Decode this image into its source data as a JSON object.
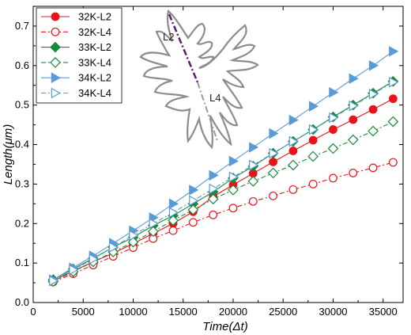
{
  "chart_data": {
    "type": "line",
    "xlabel": "Time(Δt)",
    "ylabel": "Length(μm)",
    "xlim": [
      0,
      37000
    ],
    "ylim": [
      0,
      0.75
    ],
    "x_ticks": [
      "0",
      "5000",
      "10000",
      "15000",
      "20000",
      "25000",
      "30000",
      "35000"
    ],
    "y_ticks": [
      "0.0",
      "0.1",
      "0.2",
      "0.3",
      "0.4",
      "0.5",
      "0.6",
      "0.7"
    ],
    "x": [
      2000,
      4000,
      6000,
      8000,
      10000,
      12000,
      14000,
      16000,
      18000,
      20000,
      22000,
      24000,
      26000,
      28000,
      30000,
      32000,
      34000,
      36000
    ],
    "legend_position": "top-left",
    "series": [
      {
        "name": "32K-L2",
        "color": "#e8141c",
        "marker": "circle",
        "filled": true,
        "dashed": false,
        "values": [
          0.055,
          0.08,
          0.103,
          0.125,
          0.149,
          0.175,
          0.2,
          0.23,
          0.268,
          0.298,
          0.327,
          0.356,
          0.384,
          0.411,
          0.438,
          0.463,
          0.489,
          0.516
        ]
      },
      {
        "name": "32K-L4",
        "color": "#e8141c",
        "marker": "circle",
        "filled": false,
        "dashed": true,
        "values": [
          0.052,
          0.073,
          0.095,
          0.117,
          0.139,
          0.162,
          0.182,
          0.203,
          0.222,
          0.239,
          0.256,
          0.27,
          0.286,
          0.3,
          0.315,
          0.328,
          0.341,
          0.355
        ]
      },
      {
        "name": "33K-L2",
        "color": "#1a8a3a",
        "marker": "diamond",
        "filled": true,
        "dashed": false,
        "values": [
          0.058,
          0.085,
          0.112,
          0.14,
          0.165,
          0.195,
          0.22,
          0.25,
          0.28,
          0.315,
          0.345,
          0.378,
          0.408,
          0.438,
          0.47,
          0.5,
          0.53,
          0.56
        ]
      },
      {
        "name": "33K-L4",
        "color": "#1a8a3a",
        "marker": "diamond",
        "filled": false,
        "dashed": true,
        "values": [
          0.053,
          0.078,
          0.103,
          0.128,
          0.153,
          0.18,
          0.208,
          0.235,
          0.262,
          0.285,
          0.307,
          0.328,
          0.348,
          0.37,
          0.39,
          0.412,
          0.434,
          0.458
        ]
      },
      {
        "name": "34K-L2",
        "color": "#5b9bd5",
        "marker": "triangle-right",
        "filled": true,
        "dashed": false,
        "values": [
          0.058,
          0.088,
          0.118,
          0.15,
          0.182,
          0.215,
          0.25,
          0.285,
          0.322,
          0.358,
          0.393,
          0.428,
          0.462,
          0.497,
          0.532,
          0.567,
          0.6,
          0.636
        ]
      },
      {
        "name": "34K-L4",
        "color": "#5b9bd5",
        "marker": "triangle-right",
        "filled": false,
        "dashed": true,
        "values": [
          0.055,
          0.083,
          0.11,
          0.14,
          0.17,
          0.2,
          0.228,
          0.258,
          0.288,
          0.318,
          0.348,
          0.378,
          0.408,
          0.438,
          0.468,
          0.498,
          0.528,
          0.558
        ]
      }
    ]
  },
  "inset": {
    "label_l2": "L2",
    "label_l4": "L4",
    "l2_color": "#5a1a6e",
    "l4_color": "#9a9a9a"
  }
}
